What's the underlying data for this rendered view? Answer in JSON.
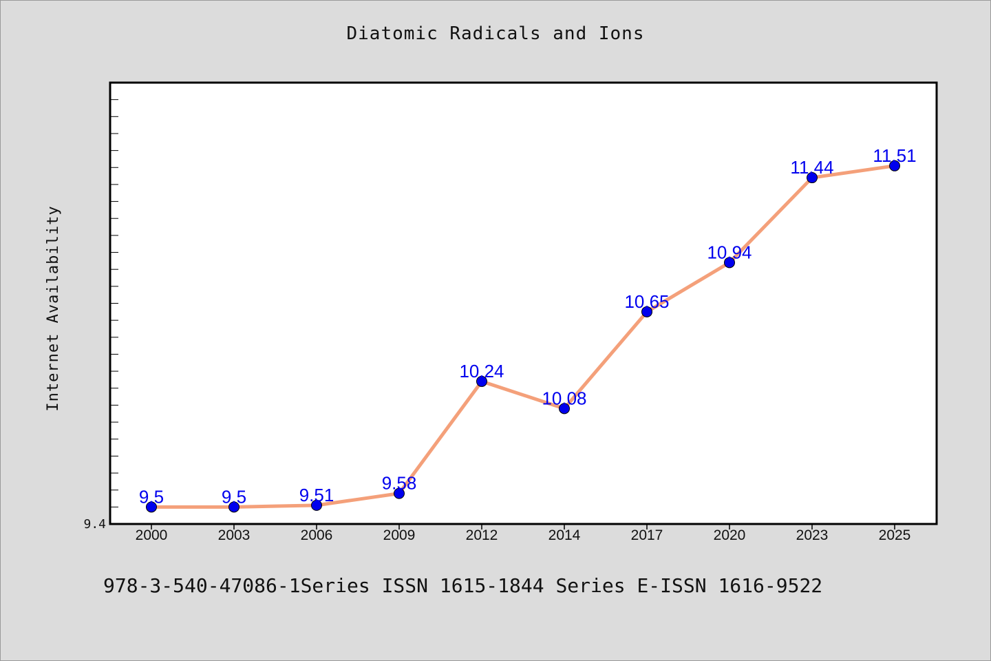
{
  "chart_data": {
    "type": "line",
    "title": "Diatomic Radicals and Ions",
    "xlabel": "",
    "ylabel": "Internet Availability",
    "categories": [
      "2000",
      "2003",
      "2006",
      "2009",
      "2012",
      "2014",
      "2017",
      "2020",
      "2023",
      "2025"
    ],
    "series": [
      {
        "values": [
          9.5,
          9.5,
          9.51,
          9.58,
          10.24,
          10.08,
          10.65,
          10.94,
          11.44,
          11.51
        ],
        "line_color": "#f4a07a",
        "marker_color": "#0000ee",
        "label_color": "#0000ee"
      }
    ],
    "ylim": [
      9.4,
      12.0
    ],
    "y_tick_labels": [
      "9.4"
    ],
    "grid": false,
    "legend": "none"
  },
  "footer": {
    "text": "978-3-540-47086-1Series ISSN 1615-1844 Series E-ISSN 1616-9522"
  }
}
